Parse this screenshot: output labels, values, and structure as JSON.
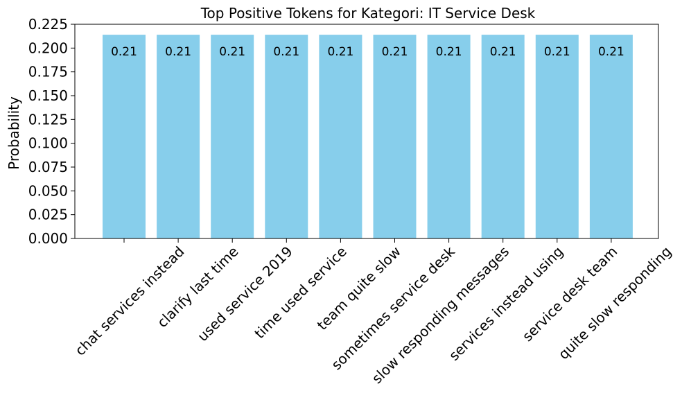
{
  "chart_data": {
    "type": "bar",
    "title": "Top Positive Tokens for Kategori: IT Service Desk",
    "xlabel": "",
    "ylabel": "Probability",
    "ylim": [
      0,
      0.225
    ],
    "yticks": [
      "0.000",
      "0.025",
      "0.050",
      "0.075",
      "0.100",
      "0.125",
      "0.150",
      "0.175",
      "0.200",
      "0.225"
    ],
    "categories": [
      "chat services instead",
      "clarify last time",
      "used service 2019",
      "time used service",
      "team quite slow",
      "sometimes service desk",
      "slow responding messages",
      "services instead using",
      "service desk team",
      "quite slow responding"
    ],
    "values": [
      0.214,
      0.214,
      0.214,
      0.214,
      0.214,
      0.214,
      0.214,
      0.214,
      0.214,
      0.214
    ],
    "data_labels": [
      "0.21",
      "0.21",
      "0.21",
      "0.21",
      "0.21",
      "0.21",
      "0.21",
      "0.21",
      "0.21",
      "0.21"
    ],
    "bar_color": "#87CEEB",
    "grid": false,
    "legend": "none",
    "xtick_rotation": 45
  }
}
